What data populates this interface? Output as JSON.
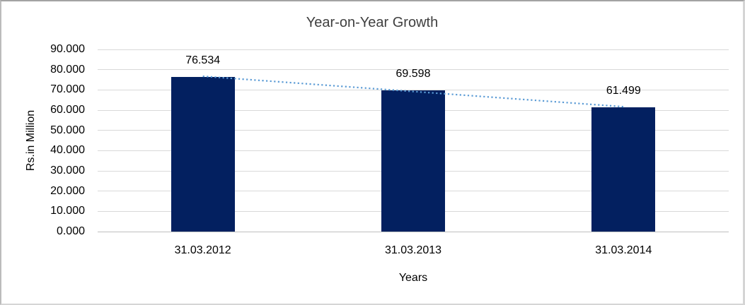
{
  "chart_data": {
    "type": "bar",
    "title": "Year-on-Year Growth",
    "categories": [
      "31.03.2012",
      "31.03.2013",
      "31.03.2014"
    ],
    "values": [
      76.534,
      69.598,
      61.499
    ],
    "data_labels": [
      "76.534",
      "69.598",
      "61.499"
    ],
    "xlabel": "Years",
    "ylabel": "Rs.in Million",
    "ylim": [
      0,
      90
    ],
    "ytick_step": 10,
    "ytick_labels": [
      "0.000",
      "10.000",
      "20.000",
      "30.000",
      "40.000",
      "50.000",
      "60.000",
      "70.000",
      "80.000",
      "90.000"
    ],
    "grid": "horizontal",
    "legend": "none",
    "trendline": {
      "type": "linear",
      "style": "dotted"
    },
    "colors": {
      "bar": "#032060",
      "trendline": "#5b9bd5",
      "gridline": "#d9d9d9",
      "axis_line": "#bfbfbf",
      "text": "#000000",
      "title": "#3f3f3f"
    }
  }
}
